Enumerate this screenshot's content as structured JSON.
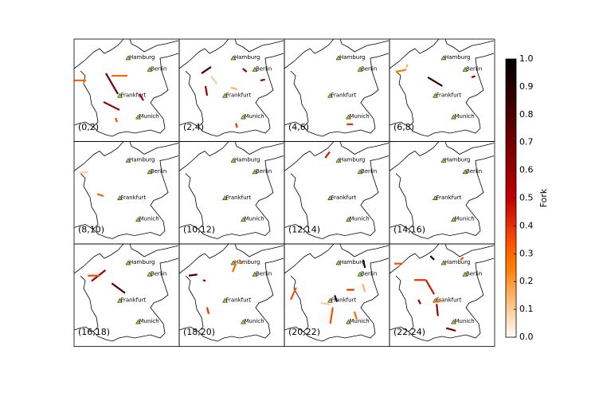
{
  "chart_data": {
    "type": "map-grid",
    "cities": [
      {
        "name": "Hamburg",
        "lon": 10.0,
        "lat": 53.55
      },
      {
        "name": "Berlin",
        "lon": 13.4,
        "lat": 52.5
      },
      {
        "name": "Frankfurt",
        "lon": 8.68,
        "lat": 50.1
      },
      {
        "name": "Munich",
        "lon": 11.58,
        "lat": 48.14
      }
    ],
    "panels": [
      {
        "label": "(0,2)",
        "segments": [
          {
            "lon": [
              1.44,
              3.33
            ],
            "lat": [
              51.51,
              51.51
            ],
            "value": 0.3
          },
          {
            "lon": [
              6.48,
              8.37
            ],
            "lat": [
              52.16,
              50.27
            ],
            "value": 0.7
          },
          {
            "lon": [
              7.36,
              9.88
            ],
            "lat": [
              51.94,
              51.94
            ],
            "value": 0.3
          },
          {
            "lon": [
              6.1,
              8.62
            ],
            "lat": [
              49.54,
              48.81
            ],
            "value": 0.6
          },
          {
            "lon": [
              7.99,
              8.24
            ],
            "lat": [
              48.08,
              47.71
            ],
            "value": 0.35
          },
          {
            "lon": [
              11.77,
              12.4
            ],
            "lat": [
              50.27,
              49.68
            ],
            "value": 0.55
          }
        ]
      },
      {
        "label": "(2,4)",
        "segments": [
          {
            "lon": [
              4.97,
              6.48
            ],
            "lat": [
              52.16,
              52.75
            ],
            "value": 0.8
          },
          {
            "lon": [
              5.6,
              5.85
            ],
            "lat": [
              51.0,
              50.12
            ],
            "value": 0.6
          },
          {
            "lon": [
              9.6,
              10.6
            ],
            "lat": [
              50.85,
              50.7
            ],
            "value": 0.15
          },
          {
            "lon": [
              11.5,
              12.1
            ],
            "lat": [
              52.6,
              52.3
            ],
            "value": 0.6
          },
          {
            "lon": [
              14.3,
              15.0
            ],
            "lat": [
              51.5,
              51.6
            ],
            "value": 0.6
          },
          {
            "lon": [
              10.4,
              10.6
            ],
            "lat": [
              47.6,
              47.2
            ],
            "value": 0.4
          },
          {
            "lon": [
              6.5,
              7.4
            ],
            "lat": [
              51.9,
              51.2
            ],
            "value": 0.1
          }
        ]
      },
      {
        "label": "(4,6)",
        "segments": [
          {
            "lon": [
              11.3,
              12.3
            ],
            "lat": [
              47.5,
              47.5
            ],
            "value": 0.4
          }
        ]
      },
      {
        "label": "(6,8)",
        "segments": [
          {
            "lon": [
              7.5,
              9.8
            ],
            "lat": [
              51.8,
              51.0
            ],
            "value": 0.85
          },
          {
            "lon": [
              2.4,
              4.1
            ],
            "lat": [
              52.3,
              52.5
            ],
            "value": 0.25
          },
          {
            "lon": [
              14.4,
              15.0
            ],
            "lat": [
              51.8,
              51.9
            ],
            "value": 0.6
          },
          {
            "lon": [
              4.1,
              4.3
            ],
            "lat": [
              52.7,
              53.0
            ],
            "value": 0.15
          }
        ]
      },
      {
        "label": "(8,10)",
        "segments": [
          {
            "lon": [
              2.3,
              3.6
            ],
            "lat": [
              52.4,
              52.5
            ],
            "value": 0.1
          },
          {
            "lon": [
              5.1,
              6.1
            ],
            "lat": [
              50.5,
              50.3
            ],
            "value": 0.3
          }
        ]
      },
      {
        "label": "(10,12)",
        "segments": []
      },
      {
        "label": "(12,14)",
        "segments": [
          {
            "lon": [
              7.9,
              8.6
            ],
            "lat": [
              53.8,
              54.35
            ],
            "value": 0.45
          }
        ]
      },
      {
        "label": "(14,16)",
        "segments": []
      },
      {
        "label": "(16,18)",
        "segments": [
          {
            "lon": [
              4.2,
              6.4
            ],
            "lat": [
              51.9,
              52.9
            ],
            "value": 0.6
          },
          {
            "lon": [
              7.4,
              9.5
            ],
            "lat": [
              51.7,
              50.8
            ],
            "value": 0.8
          },
          {
            "lon": [
              3.6,
              5.5
            ],
            "lat": [
              52.4,
              52.4
            ],
            "value": 0.35
          }
        ]
      },
      {
        "label": "(18,20)",
        "segments": [
          {
            "lon": [
              2.95,
              4.3
            ],
            "lat": [
              52.4,
              52.5
            ],
            "value": 0.8
          },
          {
            "lon": [
              9.9,
              10.4
            ],
            "lat": [
              52.75,
              53.5
            ],
            "value": 0.3
          },
          {
            "lon": [
              5.2,
              5.6
            ],
            "lat": [
              52.0,
              51.9
            ],
            "value": 0.6
          },
          {
            "lon": [
              5.85,
              6.1
            ],
            "lat": [
              49.5,
              48.9
            ],
            "value": 0.4
          },
          {
            "lon": [
              10.9,
              11.5
            ],
            "lat": [
              53.85,
              53.5
            ],
            "value": 0.3
          }
        ]
      },
      {
        "label": "(20,22)",
        "segments": [
          {
            "lon": [
              2.45,
              3.3
            ],
            "lat": [
              50.2,
              51.3
            ],
            "value": 0.35
          },
          {
            "lon": [
              9.1,
              8.7
            ],
            "lat": [
              49.5,
              48.0
            ],
            "value": 0.35
          },
          {
            "lon": [
              9.4,
              9.75
            ],
            "lat": [
              50.6,
              50.0
            ],
            "value": 0.9
          },
          {
            "lon": [
              11.3,
              12.5
            ],
            "lat": [
              51.1,
              51.1
            ],
            "value": 0.4
          },
          {
            "lon": [
              13.8,
              14.2
            ],
            "lat": [
              51.65,
              50.9
            ],
            "value": 0.15
          },
          {
            "lon": [
              13.9,
              14.2
            ],
            "lat": [
              53.85,
              53.1
            ],
            "value": 0.85
          },
          {
            "lon": [
              12.5,
              12.9
            ],
            "lat": [
              49.1,
              48.4
            ],
            "value": 0.3
          },
          {
            "lon": [
              7.2,
              8.7
            ],
            "lat": [
              49.9,
              49.75
            ],
            "value": 0.1
          }
        ]
      },
      {
        "label": "(22,24)",
        "segments": [
          {
            "lon": [
              2.2,
              3.5
            ],
            "lat": [
              53.5,
              53.5
            ],
            "value": 0.35
          },
          {
            "lon": [
              5.35,
              7.2
            ],
            "lat": [
              52.0,
              52.0
            ],
            "value": 0.4
          },
          {
            "lon": [
              7.2,
              8.5
            ],
            "lat": [
              52.0,
              50.7
            ],
            "value": 0.45
          },
          {
            "lon": [
              7.9,
              8.5
            ],
            "lat": [
              54.2,
              53.85
            ],
            "value": 0.95
          },
          {
            "lon": [
              6.0,
              6.35
            ],
            "lat": [
              50.2,
              49.8
            ],
            "value": 0.6
          },
          {
            "lon": [
              8.9,
              9.1
            ],
            "lat": [
              49.8,
              48.7
            ],
            "value": 0.6
          },
          {
            "lon": [
              8.5,
              9.75
            ],
            "lat": [
              50.0,
              50.1
            ],
            "value": 0.3
          },
          {
            "lon": [
              10.4,
              11.9
            ],
            "lat": [
              47.6,
              47.35
            ],
            "value": 0.65
          },
          {
            "lon": [
              12.65,
              13.15
            ],
            "lat": [
              53.85,
              54.05
            ],
            "value": 0.35
          }
        ]
      }
    ],
    "colorbar": {
      "label": "Fork",
      "lim": [
        0,
        1
      ],
      "ticks": [
        {
          "value": 0,
          "label": "0.0"
        },
        {
          "value": 0.1,
          "label": "0.1"
        },
        {
          "value": 0.2,
          "label": "0.2"
        },
        {
          "value": 0.3,
          "label": "0.3"
        },
        {
          "value": 0.4,
          "label": "0.4"
        },
        {
          "value": 0.5,
          "label": "0.5"
        },
        {
          "value": 0.6,
          "label": "0.6"
        },
        {
          "value": 0.7,
          "label": "0.7"
        },
        {
          "value": 0.8,
          "label": "0.8"
        },
        {
          "value": 0.9,
          "label": "0.9"
        },
        {
          "value": 1,
          "label": "1.0"
        }
      ]
    }
  }
}
